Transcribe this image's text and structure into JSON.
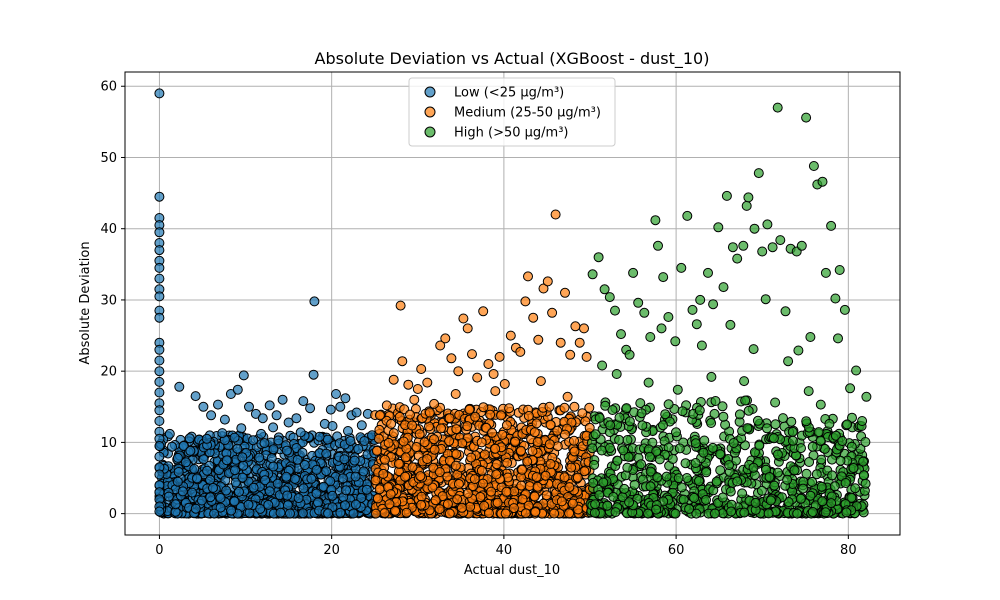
{
  "chart_data": {
    "type": "scatter",
    "title": "Absolute Deviation vs Actual (XGBoost - dust_10)",
    "xlabel": "Actual dust_10",
    "ylabel": "Absolute Deviation",
    "xlim": [
      -4,
      86
    ],
    "ylim": [
      -3,
      62
    ],
    "xticks": [
      0,
      20,
      40,
      60,
      80
    ],
    "yticks": [
      0,
      10,
      20,
      30,
      40,
      50,
      60
    ],
    "grid": true,
    "legend_position": "top-center",
    "series": [
      {
        "name": "Low (<25 µg/m³)",
        "color": "#1f77b4",
        "points": [
          [
            0,
            59.0
          ],
          [
            0,
            44.5
          ],
          [
            0,
            41.5
          ],
          [
            0,
            40.5
          ],
          [
            0,
            39.5
          ],
          [
            0,
            38.0
          ],
          [
            0,
            37.0
          ],
          [
            0,
            35.5
          ],
          [
            0,
            34.5
          ],
          [
            0,
            33.0
          ],
          [
            0,
            31.5
          ],
          [
            0,
            30.5
          ],
          [
            0,
            28.5
          ],
          [
            0,
            27.5
          ],
          [
            0,
            24.0
          ],
          [
            0,
            23.0
          ],
          [
            0,
            21.5
          ],
          [
            0,
            20.0
          ],
          [
            0,
            18.5
          ],
          [
            0,
            17.0
          ],
          [
            0,
            15.5
          ],
          [
            0,
            14.5
          ],
          [
            0,
            13.0
          ],
          [
            0,
            11.5
          ],
          [
            0,
            10.5
          ],
          [
            0,
            9.5
          ],
          [
            0,
            8.0
          ],
          [
            0,
            6.5
          ],
          [
            0,
            5.5
          ],
          [
            0,
            4.0
          ],
          [
            0,
            3.0
          ],
          [
            0,
            2.0
          ],
          [
            0,
            1.0
          ],
          [
            0,
            0.3
          ],
          [
            1.2,
            11.2
          ],
          [
            2.3,
            17.8
          ],
          [
            4.2,
            16.5
          ],
          [
            5.1,
            15.0
          ],
          [
            6.0,
            13.8
          ],
          [
            6.8,
            15.3
          ],
          [
            7.6,
            13.2
          ],
          [
            8.3,
            16.8
          ],
          [
            9.1,
            17.4
          ],
          [
            9.8,
            19.4
          ],
          [
            10.4,
            15.0
          ],
          [
            11.2,
            14.0
          ],
          [
            12.0,
            13.4
          ],
          [
            12.8,
            15.2
          ],
          [
            13.6,
            13.8
          ],
          [
            14.3,
            16.0
          ],
          [
            15.0,
            12.8
          ],
          [
            15.9,
            13.4
          ],
          [
            16.7,
            15.8
          ],
          [
            17.5,
            14.8
          ],
          [
            17.9,
            19.5
          ],
          [
            18.0,
            29.8
          ],
          [
            19.2,
            12.6
          ],
          [
            19.9,
            14.6
          ],
          [
            20.5,
            16.8
          ],
          [
            21.0,
            15.0
          ],
          [
            21.6,
            16.2
          ],
          [
            22.3,
            13.8
          ],
          [
            22.9,
            14.2
          ],
          [
            23.5,
            12.4
          ],
          [
            24.2,
            14.0
          ],
          [
            24.7,
            11.0
          ],
          [
            2.8,
            9.5
          ],
          [
            3.6,
            8.8
          ],
          [
            5.5,
            10.5
          ],
          [
            7.3,
            11.3
          ],
          [
            9.5,
            12.0
          ],
          [
            11.8,
            11.2
          ],
          [
            13.2,
            12.1
          ],
          [
            16.4,
            11.4
          ],
          [
            18.6,
            10.8
          ],
          [
            20.1,
            12.3
          ],
          [
            21.9,
            11.6
          ],
          [
            23.8,
            10.2
          ]
        ]
      },
      {
        "name": "Medium (25-50 µg/m³)",
        "color": "#ff7f0e",
        "points": [
          [
            25.6,
            13.8
          ],
          [
            26.4,
            15.2
          ],
          [
            27.2,
            18.8
          ],
          [
            28.0,
            29.2
          ],
          [
            28.2,
            21.4
          ],
          [
            28.9,
            18.1
          ],
          [
            29.6,
            16.0
          ],
          [
            30.4,
            20.3
          ],
          [
            31.1,
            18.4
          ],
          [
            31.9,
            15.4
          ],
          [
            32.6,
            23.6
          ],
          [
            33.2,
            24.6
          ],
          [
            33.9,
            21.8
          ],
          [
            34.7,
            20.0
          ],
          [
            35.3,
            27.4
          ],
          [
            35.8,
            26.0
          ],
          [
            36.3,
            22.4
          ],
          [
            36.9,
            19.1
          ],
          [
            37.6,
            28.4
          ],
          [
            38.2,
            21.0
          ],
          [
            38.8,
            19.6
          ],
          [
            39.5,
            22.0
          ],
          [
            40.1,
            18.2
          ],
          [
            40.8,
            25.0
          ],
          [
            41.4,
            23.3
          ],
          [
            41.9,
            22.7
          ],
          [
            42.5,
            29.8
          ],
          [
            42.8,
            33.3
          ],
          [
            43.4,
            27.5
          ],
          [
            44.0,
            24.4
          ],
          [
            44.6,
            31.6
          ],
          [
            45.1,
            32.6
          ],
          [
            45.6,
            28.2
          ],
          [
            46.0,
            42.0
          ],
          [
            46.6,
            24.0
          ],
          [
            47.1,
            31.0
          ],
          [
            47.7,
            22.3
          ],
          [
            48.3,
            26.3
          ],
          [
            48.8,
            24.0
          ],
          [
            49.3,
            26.0
          ],
          [
            49.6,
            22.0
          ],
          [
            26.9,
            12.6
          ],
          [
            29.1,
            13.9
          ],
          [
            31.4,
            14.2
          ],
          [
            33.7,
            13.4
          ],
          [
            36.0,
            14.6
          ],
          [
            38.4,
            13.9
          ],
          [
            40.6,
            14.8
          ],
          [
            42.9,
            13.7
          ],
          [
            45.3,
            15.0
          ],
          [
            47.4,
            16.4
          ],
          [
            49.1,
            14.1
          ],
          [
            44.3,
            18.6
          ],
          [
            39.0,
            17.2
          ],
          [
            34.4,
            16.8
          ],
          [
            30.0,
            17.5
          ]
        ]
      },
      {
        "name": "High (>50 µg/m³)",
        "color": "#2ca02c",
        "points": [
          [
            50.3,
            33.6
          ],
          [
            51.0,
            36.0
          ],
          [
            51.7,
            31.5
          ],
          [
            52.3,
            30.4
          ],
          [
            52.9,
            28.5
          ],
          [
            53.6,
            25.2
          ],
          [
            54.2,
            23.0
          ],
          [
            55.0,
            33.8
          ],
          [
            55.6,
            29.6
          ],
          [
            56.3,
            28.2
          ],
          [
            57.0,
            24.8
          ],
          [
            57.6,
            41.2
          ],
          [
            57.9,
            37.6
          ],
          [
            58.5,
            33.2
          ],
          [
            59.1,
            27.6
          ],
          [
            59.9,
            24.2
          ],
          [
            60.6,
            34.5
          ],
          [
            61.3,
            41.8
          ],
          [
            61.9,
            28.6
          ],
          [
            62.4,
            26.6
          ],
          [
            63.0,
            23.6
          ],
          [
            63.7,
            33.8
          ],
          [
            64.3,
            29.4
          ],
          [
            64.9,
            40.2
          ],
          [
            65.5,
            31.8
          ],
          [
            65.9,
            44.6
          ],
          [
            66.6,
            37.4
          ],
          [
            67.1,
            35.8
          ],
          [
            67.8,
            37.6
          ],
          [
            68.2,
            43.2
          ],
          [
            68.4,
            44.4
          ],
          [
            69.1,
            40.0
          ],
          [
            69.6,
            47.8
          ],
          [
            70.0,
            36.8
          ],
          [
            70.6,
            40.6
          ],
          [
            71.2,
            37.4
          ],
          [
            71.8,
            57.0
          ],
          [
            72.1,
            38.4
          ],
          [
            72.7,
            28.4
          ],
          [
            73.3,
            37.2
          ],
          [
            74.0,
            36.8
          ],
          [
            74.6,
            37.6
          ],
          [
            75.1,
            55.6
          ],
          [
            75.6,
            24.8
          ],
          [
            76.0,
            48.8
          ],
          [
            76.4,
            46.2
          ],
          [
            77.0,
            46.6
          ],
          [
            77.4,
            33.8
          ],
          [
            78.0,
            40.4
          ],
          [
            78.5,
            30.2
          ],
          [
            79.0,
            34.2
          ],
          [
            79.6,
            28.6
          ],
          [
            80.2,
            17.6
          ],
          [
            80.9,
            20.1
          ],
          [
            81.6,
            13.0
          ],
          [
            82.1,
            16.4
          ],
          [
            81.8,
            5.4
          ],
          [
            82.0,
            4.2
          ],
          [
            80.6,
            6.4
          ],
          [
            78.8,
            24.6
          ],
          [
            74.2,
            22.9
          ],
          [
            70.4,
            30.1
          ],
          [
            66.3,
            26.5
          ],
          [
            62.8,
            30.0
          ],
          [
            58.3,
            26.0
          ],
          [
            54.6,
            22.3
          ],
          [
            51.4,
            20.8
          ],
          [
            53.1,
            19.6
          ],
          [
            56.8,
            18.4
          ],
          [
            60.2,
            17.4
          ],
          [
            64.1,
            19.2
          ],
          [
            67.9,
            18.6
          ],
          [
            71.5,
            15.6
          ],
          [
            75.4,
            17.2
          ],
          [
            77.8,
            12.6
          ],
          [
            79.3,
            10.2
          ],
          [
            80.4,
            9.4
          ],
          [
            76.8,
            15.3
          ],
          [
            73.0,
            21.4
          ],
          [
            69.0,
            23.1
          ]
        ]
      }
    ]
  }
}
